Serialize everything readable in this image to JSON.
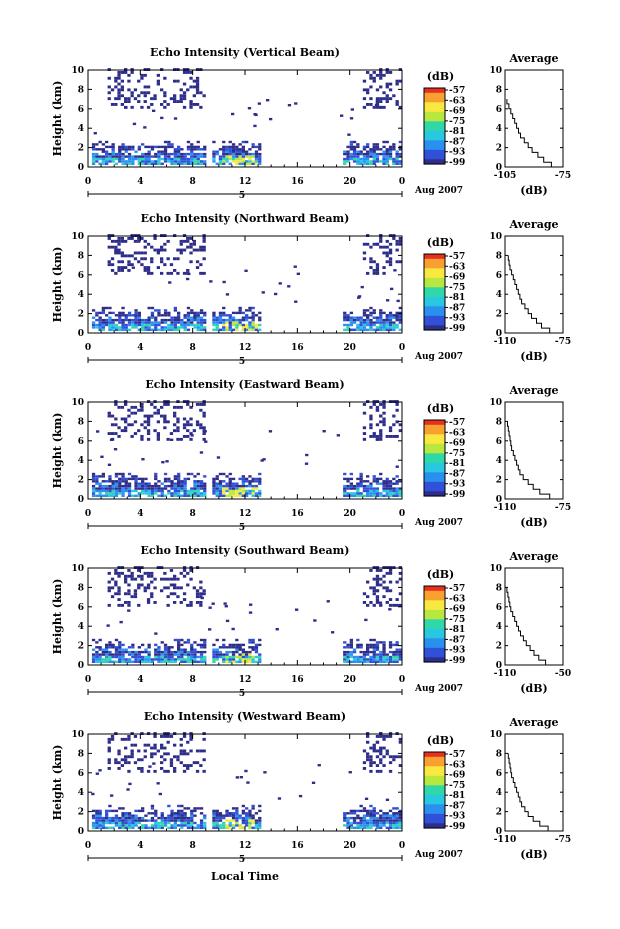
{
  "figure": {
    "ylabel": "Height (km)",
    "date_label": "Aug 2007",
    "time_axis_label": "Local Time",
    "colorbar_unit": "(dB)",
    "avg_title": "Average",
    "avg_xlabel": "(dB)",
    "day_label": "5",
    "colormap": [
      "#2e2e8a",
      "#3050d8",
      "#2a90f0",
      "#28c8e0",
      "#30d8a8",
      "#b8e840",
      "#f8e840",
      "#f8a030",
      "#e83020"
    ]
  },
  "chart_data": [
    {
      "type": "heatmap",
      "title": "Echo Intensity (Vertical Beam)",
      "xlabel": "",
      "ylabel": "Height (km)",
      "x_ticks": [
        "0",
        "4",
        "8",
        "12",
        "16",
        "20",
        "0"
      ],
      "x_range": [
        0,
        24
      ],
      "ylim": [
        0,
        10
      ],
      "y_ticks": [
        "0",
        "2",
        "4",
        "6",
        "8",
        "10"
      ],
      "colorbar": {
        "label": "(dB)",
        "ticks": [
          "-57",
          "-63",
          "-69",
          "-75",
          "-81",
          "-87",
          "-93",
          "-99"
        ],
        "range": [
          -99,
          -57
        ]
      },
      "day_label": "5",
      "date_label": "Aug 2007",
      "profile": {
        "title": "Average",
        "xlabel": "(dB)",
        "x_ticks": [
          "-105",
          "-75"
        ],
        "xlim": [
          -105,
          -75
        ],
        "height_km": [
          0,
          0.5,
          1,
          1.5,
          2,
          2.5,
          3,
          3.5,
          4,
          4.5,
          5,
          5.5,
          6,
          6.5,
          7
        ],
        "db": [
          -77,
          -81,
          -85,
          -88,
          -91,
          -93,
          -95,
          -97,
          -98,
          -99,
          -100,
          -101,
          -102,
          -103,
          -104
        ]
      }
    },
    {
      "type": "heatmap",
      "title": "Echo Intensity (Northward Beam)",
      "xlabel": "",
      "ylabel": "Height (km)",
      "x_ticks": [
        "0",
        "4",
        "8",
        "12",
        "16",
        "20",
        "0"
      ],
      "x_range": [
        0,
        24
      ],
      "ylim": [
        0,
        10
      ],
      "y_ticks": [
        "0",
        "2",
        "4",
        "6",
        "8",
        "10"
      ],
      "colorbar": {
        "label": "(dB)",
        "ticks": [
          "-57",
          "-63",
          "-69",
          "-75",
          "-81",
          "-87",
          "-93",
          "-99"
        ],
        "range": [
          -99,
          -57
        ]
      },
      "day_label": "5",
      "date_label": "Aug 2007",
      "profile": {
        "title": "Average",
        "xlabel": "(dB)",
        "x_ticks": [
          "-110",
          "-75"
        ],
        "xlim": [
          -110,
          -75
        ],
        "height_km": [
          0,
          0.5,
          1,
          1.5,
          2,
          2.5,
          3,
          3.5,
          4,
          4.5,
          5,
          5.5,
          6,
          6.5,
          7,
          7.5,
          8
        ],
        "db": [
          -78,
          -83,
          -88,
          -91,
          -94,
          -96,
          -98,
          -100,
          -101,
          -102,
          -103,
          -104,
          -105,
          -106,
          -107,
          -107.5,
          -108
        ]
      }
    },
    {
      "type": "heatmap",
      "title": "Echo Intensity (Eastward Beam)",
      "xlabel": "",
      "ylabel": "Height (km)",
      "x_ticks": [
        "0",
        "4",
        "8",
        "12",
        "16",
        "20",
        "0"
      ],
      "x_range": [
        0,
        24
      ],
      "ylim": [
        0,
        10
      ],
      "y_ticks": [
        "0",
        "2",
        "4",
        "6",
        "8",
        "10"
      ],
      "colorbar": {
        "label": "(dB)",
        "ticks": [
          "-57",
          "-63",
          "-69",
          "-75",
          "-81",
          "-87",
          "-93",
          "-99"
        ],
        "range": [
          -99,
          -57
        ]
      },
      "day_label": "5",
      "date_label": "Aug 2007",
      "profile": {
        "title": "Average",
        "xlabel": "(dB)",
        "x_ticks": [
          "-110",
          "-75"
        ],
        "xlim": [
          -110,
          -75
        ],
        "height_km": [
          0,
          0.5,
          1,
          1.5,
          2,
          2.5,
          3,
          3.5,
          4,
          4.5,
          5,
          5.5,
          6,
          6.5,
          7,
          7.5,
          8
        ],
        "db": [
          -77,
          -83,
          -89,
          -93,
          -96,
          -99,
          -101,
          -102,
          -103,
          -104,
          -105,
          -106,
          -106.5,
          -107,
          -107.5,
          -108,
          -108.5
        ]
      }
    },
    {
      "type": "heatmap",
      "title": "Echo Intensity (Southward Beam)",
      "xlabel": "",
      "ylabel": "Height (km)",
      "x_ticks": [
        "0",
        "4",
        "8",
        "12",
        "16",
        "20",
        "0"
      ],
      "x_range": [
        0,
        24
      ],
      "ylim": [
        0,
        10
      ],
      "y_ticks": [
        "0",
        "2",
        "4",
        "6",
        "8",
        "10"
      ],
      "colorbar": {
        "label": "(dB)",
        "ticks": [
          "-57",
          "-63",
          "-69",
          "-75",
          "-81",
          "-87",
          "-93",
          "-99"
        ],
        "range": [
          -99,
          -57
        ]
      },
      "day_label": "5",
      "date_label": "Aug 2007",
      "profile": {
        "title": "Average",
        "xlabel": "(dB)",
        "x_ticks": [
          "-110",
          "-50"
        ],
        "xlim": [
          -110,
          -50
        ],
        "height_km": [
          0,
          0.5,
          1,
          1.5,
          2,
          2.5,
          3,
          3.5,
          4,
          4.5,
          5,
          5.5,
          6,
          6.5,
          7,
          7.5,
          8
        ],
        "db": [
          -60,
          -68,
          -75,
          -80,
          -84,
          -88,
          -91,
          -94,
          -96,
          -98,
          -100,
          -102,
          -104,
          -105,
          -106,
          -107,
          -108
        ]
      }
    },
    {
      "type": "heatmap",
      "title": "Echo Intensity (Westward Beam)",
      "xlabel": "Local Time",
      "ylabel": "Height (km)",
      "x_ticks": [
        "0",
        "4",
        "8",
        "12",
        "16",
        "20",
        "0"
      ],
      "x_range": [
        0,
        24
      ],
      "ylim": [
        0,
        10
      ],
      "y_ticks": [
        "0",
        "2",
        "4",
        "6",
        "8",
        "10"
      ],
      "colorbar": {
        "label": "(dB)",
        "ticks": [
          "-57",
          "-63",
          "-69",
          "-75",
          "-81",
          "-87",
          "-93",
          "-99"
        ],
        "range": [
          -99,
          -57
        ]
      },
      "day_label": "5",
      "date_label": "Aug 2007",
      "profile": {
        "title": "Average",
        "xlabel": "(dB)",
        "x_ticks": [
          "-110",
          "-75"
        ],
        "xlim": [
          -110,
          -75
        ],
        "height_km": [
          0,
          0.5,
          1,
          1.5,
          2,
          2.5,
          3,
          3.5,
          4,
          4.5,
          5,
          5.5,
          6,
          6.5,
          7,
          7.5,
          8
        ],
        "db": [
          -78,
          -84,
          -89,
          -93,
          -96,
          -98,
          -100,
          -101,
          -102,
          -103,
          -104,
          -105,
          -106,
          -106.5,
          -107,
          -107.5,
          -108
        ]
      }
    }
  ]
}
